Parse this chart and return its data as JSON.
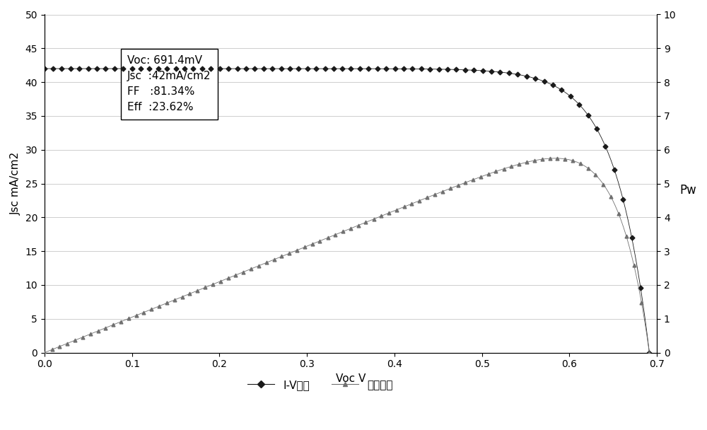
{
  "Voc": 0.6914,
  "Jsc": 42.0,
  "FF": 81.34,
  "Eff": 23.62,
  "left_ylabel": "Jsc mA/cm2",
  "right_ylabel": "Pw",
  "xlabel": "Voc V",
  "legend_iv": "I-V曲线",
  "legend_pw": "功率曲线",
  "annotation_lines": [
    "Voc: 691.4mV",
    "Jsc  :42mA/cm2",
    "FF   :81.34%",
    "Eff  :23.62%"
  ],
  "left_ylim": [
    0,
    50
  ],
  "right_ylim": [
    0,
    10
  ],
  "xlim": [
    0,
    0.7
  ],
  "left_yticks": [
    0,
    5,
    10,
    15,
    20,
    25,
    30,
    35,
    40,
    45,
    50
  ],
  "right_yticks": [
    0,
    1,
    2,
    3,
    4,
    5,
    6,
    7,
    8,
    9,
    10
  ],
  "xticks": [
    0,
    0.1,
    0.2,
    0.3,
    0.4,
    0.5,
    0.6,
    0.7
  ],
  "bg_color": "#ffffff",
  "iv_color": "#1a1a1a",
  "pw_color": "#707070",
  "marker_iv": "D",
  "marker_pw": "^",
  "figsize": [
    10.0,
    6.08
  ],
  "dpi": 100,
  "n_markers_iv": 70,
  "n_markers_pw": 80,
  "ideality": 1.5,
  "power_scale": 4.0
}
